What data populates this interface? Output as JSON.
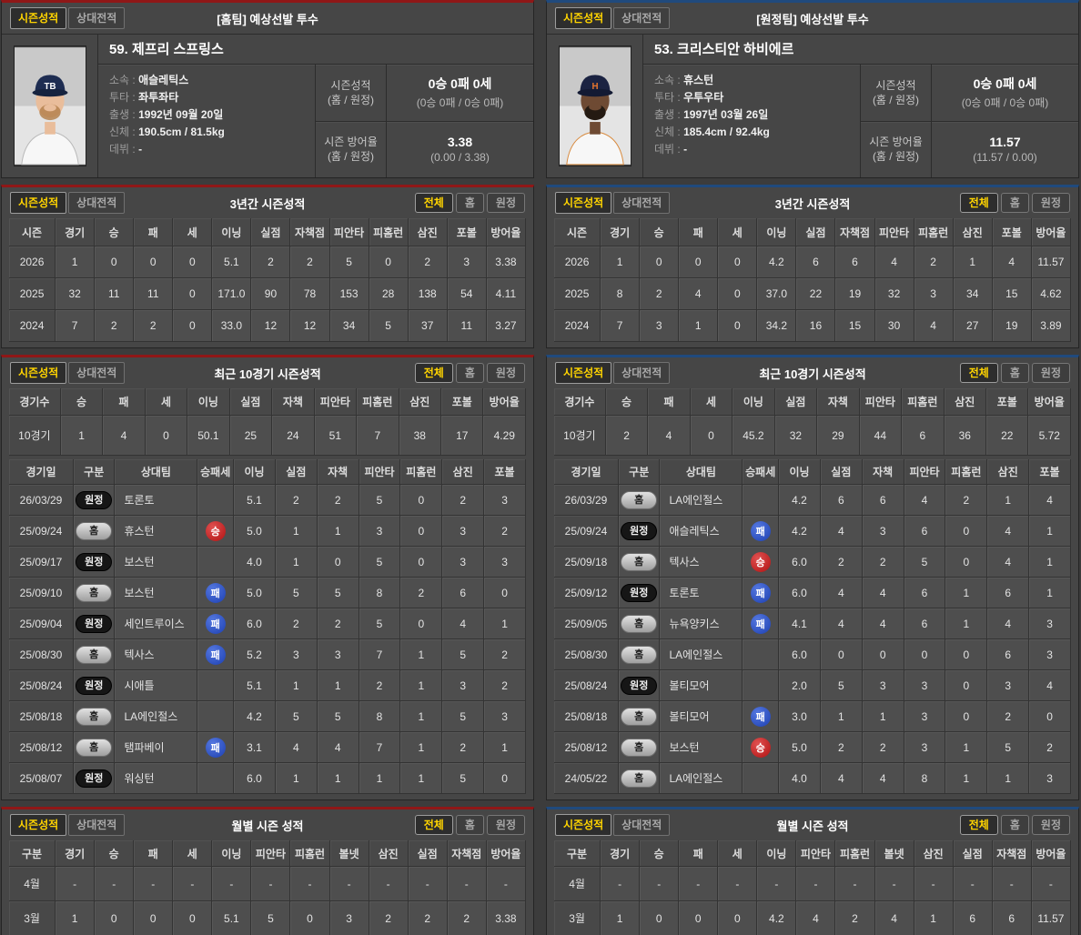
{
  "colors": {
    "home_accent": "#8f1717",
    "away_accent": "#204a7d",
    "active_tab_text": "#ffd400",
    "win_badge": "#c01818",
    "lose_badge": "#2850c8"
  },
  "labels": {
    "tab_season": "시즌성적",
    "tab_h2h": "상대전적",
    "filter_all": "전체",
    "filter_home": "홈",
    "filter_away": "원정",
    "section_three_year": "3년간 시즌성적",
    "section_recent": "최근 10경기 시즌성적",
    "section_monthly": "월별 시즌 성적"
  },
  "columns": {
    "three_year": [
      "시즌",
      "경기",
      "승",
      "패",
      "세",
      "이닝",
      "실점",
      "자책점",
      "피안타",
      "피홈런",
      "삼진",
      "포볼",
      "방어율"
    ],
    "recent_summary": [
      "경기수",
      "승",
      "패",
      "세",
      "이닝",
      "실점",
      "자책",
      "피안타",
      "피홈런",
      "삼진",
      "포볼",
      "방어율"
    ],
    "game_log": [
      "경기일",
      "구분",
      "상대팀",
      "승패세",
      "이닝",
      "실점",
      "자책",
      "피안타",
      "피홈런",
      "삼진",
      "포볼"
    ],
    "monthly": [
      "구분",
      "경기",
      "승",
      "패",
      "세",
      "이닝",
      "피안타",
      "피홈런",
      "볼넷",
      "삼진",
      "실점",
      "자책점",
      "방어율"
    ]
  },
  "players": [
    {
      "panel_title": "[홈팀] 예상선발 투수",
      "name": "59. 제프리 스프링스",
      "info": [
        {
          "label": "소속",
          "value": "애슬레틱스"
        },
        {
          "label": "투타",
          "value": "좌투좌타"
        },
        {
          "label": "출생",
          "value": "1992년 09월 20일"
        },
        {
          "label": "신체",
          "value": "190.5cm / 81.5kg"
        },
        {
          "label": "데뷔",
          "value": "-"
        }
      ],
      "season_record": {
        "label": "시즌성적",
        "label_sub": "(홈 / 원정)",
        "value": "0승 0패 0세",
        "value_sub": "(0승 0패 / 0승 0패)"
      },
      "season_era": {
        "label": "시즌 방어율",
        "label_sub": "(홈 / 원정)",
        "value": "3.38",
        "value_sub": "(0.00 / 3.38)"
      },
      "three_year_rows": [
        [
          "2026",
          "1",
          "0",
          "0",
          "0",
          "5.1",
          "2",
          "2",
          "5",
          "0",
          "2",
          "3",
          "3.38"
        ],
        [
          "2025",
          "32",
          "11",
          "11",
          "0",
          "171.0",
          "90",
          "78",
          "153",
          "28",
          "138",
          "54",
          "4.11"
        ],
        [
          "2024",
          "7",
          "2",
          "2",
          "0",
          "33.0",
          "12",
          "12",
          "34",
          "5",
          "37",
          "11",
          "3.27"
        ]
      ],
      "recent_summary_rows": [
        [
          "10경기",
          "1",
          "4",
          "0",
          "50.1",
          "25",
          "24",
          "51",
          "7",
          "38",
          "17",
          "4.29"
        ]
      ],
      "game_log_rows": [
        [
          "26/03/29",
          "원정",
          "토론토",
          "",
          "5.1",
          "2",
          "2",
          "5",
          "0",
          "2",
          "3"
        ],
        [
          "25/09/24",
          "홈",
          "휴스턴",
          "승",
          "5.0",
          "1",
          "1",
          "3",
          "0",
          "3",
          "2"
        ],
        [
          "25/09/17",
          "원정",
          "보스턴",
          "",
          "4.0",
          "1",
          "0",
          "5",
          "0",
          "3",
          "3"
        ],
        [
          "25/09/10",
          "홈",
          "보스턴",
          "패",
          "5.0",
          "5",
          "5",
          "8",
          "2",
          "6",
          "0"
        ],
        [
          "25/09/04",
          "원정",
          "세인트루이스",
          "패",
          "6.0",
          "2",
          "2",
          "5",
          "0",
          "4",
          "1"
        ],
        [
          "25/08/30",
          "홈",
          "텍사스",
          "패",
          "5.2",
          "3",
          "3",
          "7",
          "1",
          "5",
          "2"
        ],
        [
          "25/08/24",
          "원정",
          "시애틀",
          "",
          "5.1",
          "1",
          "1",
          "2",
          "1",
          "3",
          "2"
        ],
        [
          "25/08/18",
          "홈",
          "LA에인절스",
          "",
          "4.2",
          "5",
          "5",
          "8",
          "1",
          "5",
          "3"
        ],
        [
          "25/08/12",
          "홈",
          "탬파베이",
          "패",
          "3.1",
          "4",
          "4",
          "7",
          "1",
          "2",
          "1"
        ],
        [
          "25/08/07",
          "원정",
          "워싱턴",
          "",
          "6.0",
          "1",
          "1",
          "1",
          "1",
          "5",
          "0"
        ]
      ],
      "monthly_rows": [
        [
          "4월",
          "-",
          "-",
          "-",
          "-",
          "-",
          "-",
          "-",
          "-",
          "-",
          "-",
          "-",
          "-"
        ],
        [
          "3월",
          "1",
          "0",
          "0",
          "0",
          "5.1",
          "5",
          "0",
          "3",
          "2",
          "2",
          "2",
          "3.38"
        ]
      ]
    },
    {
      "panel_title": "[원정팀] 예상선발 투수",
      "name": "53. 크리스티안 하비에르",
      "info": [
        {
          "label": "소속",
          "value": "휴스턴"
        },
        {
          "label": "투타",
          "value": "우투우타"
        },
        {
          "label": "출생",
          "value": "1997년 03월 26일"
        },
        {
          "label": "신체",
          "value": "185.4cm / 92.4kg"
        },
        {
          "label": "데뷔",
          "value": "-"
        }
      ],
      "season_record": {
        "label": "시즌성적",
        "label_sub": "(홈 / 원정)",
        "value": "0승 0패 0세",
        "value_sub": "(0승 0패 / 0승 0패)"
      },
      "season_era": {
        "label": "시즌 방어율",
        "label_sub": "(홈 / 원정)",
        "value": "11.57",
        "value_sub": "(11.57 / 0.00)"
      },
      "three_year_rows": [
        [
          "2026",
          "1",
          "0",
          "0",
          "0",
          "4.2",
          "6",
          "6",
          "4",
          "2",
          "1",
          "4",
          "11.57"
        ],
        [
          "2025",
          "8",
          "2",
          "4",
          "0",
          "37.0",
          "22",
          "19",
          "32",
          "3",
          "34",
          "15",
          "4.62"
        ],
        [
          "2024",
          "7",
          "3",
          "1",
          "0",
          "34.2",
          "16",
          "15",
          "30",
          "4",
          "27",
          "19",
          "3.89"
        ]
      ],
      "recent_summary_rows": [
        [
          "10경기",
          "2",
          "4",
          "0",
          "45.2",
          "32",
          "29",
          "44",
          "6",
          "36",
          "22",
          "5.72"
        ]
      ],
      "game_log_rows": [
        [
          "26/03/29",
          "홈",
          "LA에인절스",
          "",
          "4.2",
          "6",
          "6",
          "4",
          "2",
          "1",
          "4"
        ],
        [
          "25/09/24",
          "원정",
          "애슬레틱스",
          "패",
          "4.2",
          "4",
          "3",
          "6",
          "0",
          "4",
          "1"
        ],
        [
          "25/09/18",
          "홈",
          "텍사스",
          "승",
          "6.0",
          "2",
          "2",
          "5",
          "0",
          "4",
          "1"
        ],
        [
          "25/09/12",
          "원정",
          "토론토",
          "패",
          "6.0",
          "4",
          "4",
          "6",
          "1",
          "6",
          "1"
        ],
        [
          "25/09/05",
          "홈",
          "뉴욕양키스",
          "패",
          "4.1",
          "4",
          "4",
          "6",
          "1",
          "4",
          "3"
        ],
        [
          "25/08/30",
          "홈",
          "LA에인절스",
          "",
          "6.0",
          "0",
          "0",
          "0",
          "0",
          "6",
          "3"
        ],
        [
          "25/08/24",
          "원정",
          "볼티모어",
          "",
          "2.0",
          "5",
          "3",
          "3",
          "0",
          "3",
          "4"
        ],
        [
          "25/08/18",
          "홈",
          "볼티모어",
          "패",
          "3.0",
          "1",
          "1",
          "3",
          "0",
          "2",
          "0"
        ],
        [
          "25/08/12",
          "홈",
          "보스턴",
          "승",
          "5.0",
          "2",
          "2",
          "3",
          "1",
          "5",
          "2"
        ],
        [
          "24/05/22",
          "홈",
          "LA에인절스",
          "",
          "4.0",
          "4",
          "4",
          "8",
          "1",
          "1",
          "3"
        ]
      ],
      "monthly_rows": [
        [
          "4월",
          "-",
          "-",
          "-",
          "-",
          "-",
          "-",
          "-",
          "-",
          "-",
          "-",
          "-",
          "-"
        ],
        [
          "3월",
          "1",
          "0",
          "0",
          "0",
          "4.2",
          "4",
          "2",
          "4",
          "1",
          "6",
          "6",
          "11.57"
        ]
      ]
    }
  ]
}
